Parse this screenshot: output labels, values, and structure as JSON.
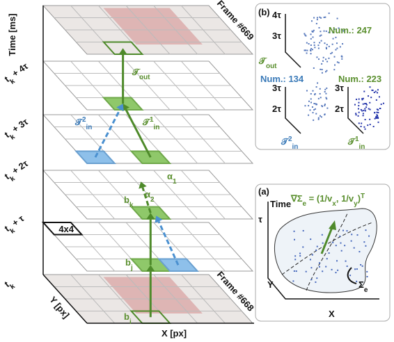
{
  "main": {
    "time_axis": "Time [ms]",
    "y_axis": "Y [px]",
    "x_axis": "X [px]",
    "frame_top": "Frame #669",
    "frame_bottom": "Frame #668",
    "time_labels": [
      [
        {
          "text": "t"
        },
        {
          "text": "k",
          "sub": true
        },
        {
          "text": " + 4τ"
        }
      ],
      [
        {
          "text": "t"
        },
        {
          "text": "k",
          "sub": true
        },
        {
          "text": " + 3τ"
        }
      ],
      [
        {
          "text": "t"
        },
        {
          "text": "k",
          "sub": true
        },
        {
          "text": " + 2τ"
        }
      ],
      [
        {
          "text": "t"
        },
        {
          "text": "k",
          "sub": true
        },
        {
          "text": " + τ"
        }
      ],
      [
        {
          "text": "t"
        },
        {
          "text": "k",
          "sub": true
        }
      ]
    ],
    "cell_size": "4x4",
    "t_out": [
      {
        "text": "𝒯"
      },
      {
        "text": "out",
        "sub": true
      }
    ],
    "t_in2": [
      {
        "text": "𝒯"
      },
      {
        "text": "2",
        "sup": true
      },
      {
        "text": "in",
        "sub": true
      }
    ],
    "t_in1": [
      {
        "text": "𝒯"
      },
      {
        "text": "1",
        "sup": true
      },
      {
        "text": "in",
        "sub": true
      }
    ],
    "alpha1": [
      {
        "text": "α"
      },
      {
        "text": "1",
        "sub": true
      }
    ],
    "alpha2": [
      {
        "text": "α"
      },
      {
        "text": "2",
        "sub": true
      }
    ],
    "b_k": [
      {
        "text": "b"
      },
      {
        "text": "k",
        "sub": true
      }
    ],
    "b_j": [
      {
        "text": "b"
      },
      {
        "text": "j",
        "sub": true
      }
    ],
    "b_i": [
      {
        "text": "b"
      },
      {
        "text": "i",
        "sub": true
      }
    ]
  },
  "panel_b": {
    "label": "(b)",
    "top": {
      "ticks": [
        "4τ",
        "3τ"
      ],
      "count": "Num.: 247",
      "name": [
        {
          "text": "𝒯"
        },
        {
          "text": "out",
          "sub": true
        }
      ]
    },
    "left": {
      "ticks": [
        "3τ",
        "2τ"
      ],
      "count": "Num.: 134",
      "name": [
        {
          "text": "𝒯"
        },
        {
          "text": "2",
          "sup": true
        },
        {
          "text": "in",
          "sub": true
        }
      ]
    },
    "right": {
      "ticks": [
        "3τ",
        "2τ"
      ],
      "count": "Num.: 223",
      "name": [
        {
          "text": "𝒯"
        },
        {
          "text": "1",
          "sup": true
        },
        {
          "text": "in",
          "sub": true
        }
      ]
    }
  },
  "panel_a": {
    "label": "(a)",
    "time": "Time",
    "tau": "τ",
    "y": "Y",
    "x": "X",
    "formula": [
      {
        "text": "∇Σ"
      },
      {
        "text": "e",
        "sub": true
      },
      {
        "text": " = (1/v"
      },
      {
        "text": "x",
        "sub": true
      },
      {
        "text": ", 1/v"
      },
      {
        "text": "y",
        "sub": true
      },
      {
        "text": ")"
      },
      {
        "text": "T",
        "sup": true
      }
    ],
    "surface": [
      {
        "text": "Σ"
      },
      {
        "text": "e",
        "sub": true
      }
    ]
  }
}
